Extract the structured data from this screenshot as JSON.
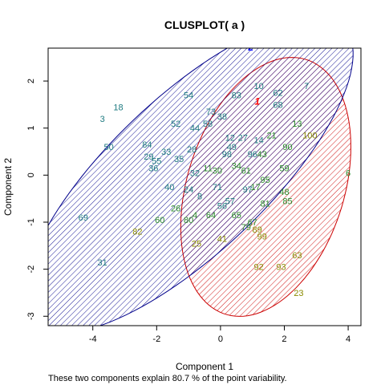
{
  "chart_data": {
    "type": "scatter",
    "title": "CLUSPLOT( a )",
    "xlabel": "Component 1",
    "ylabel": "Component 2",
    "note": "These two components explain 80.7 % of the point variability.",
    "xlim": [
      -5.4,
      4.4
    ],
    "ylim": [
      -3.2,
      2.7
    ],
    "xticks": [
      -4,
      -2,
      0,
      2,
      4
    ],
    "yticks": [
      -3,
      -2,
      -1,
      0,
      1,
      2
    ],
    "colors": {
      "cluster1": "#cc0000",
      "cluster2": "#00008b",
      "points_blue": "#1e7a80",
      "points_green": "#2a8a2a",
      "points_olive": "#8a8a00",
      "overlap": "#8a008a"
    },
    "clusters": [
      {
        "label": "1",
        "cx": 1.42,
        "cy": -0.25,
        "rx": 3.1,
        "ry": 2.25,
        "angle": 48,
        "label_x": 1.15,
        "label_y": 1.5,
        "label_color": "#ff0000"
      },
      {
        "label": "2",
        "cx": -1.0,
        "cy": 0.0,
        "rx": 5.85,
        "ry": 1.9,
        "angle": 30,
        "label_x": 0.95,
        "label_y": 2.65,
        "label_color": "#0000ff"
      }
    ],
    "points": [
      {
        "label": "3",
        "x": -3.7,
        "y": 1.2,
        "g": "blue"
      },
      {
        "label": "18",
        "x": -3.2,
        "y": 1.45,
        "g": "blue"
      },
      {
        "label": "50",
        "x": -3.5,
        "y": 0.6,
        "g": "blue"
      },
      {
        "label": "69",
        "x": -4.3,
        "y": -0.9,
        "g": "blue"
      },
      {
        "label": "31",
        "x": -3.7,
        "y": -1.85,
        "g": "blue"
      },
      {
        "label": "54",
        "x": -1.0,
        "y": 1.7,
        "g": "blue"
      },
      {
        "label": "73",
        "x": -0.3,
        "y": 1.35,
        "g": "blue"
      },
      {
        "label": "52",
        "x": -1.4,
        "y": 1.1,
        "g": "blue"
      },
      {
        "label": "83",
        "x": 0.5,
        "y": 1.7,
        "g": "blue"
      },
      {
        "label": "10",
        "x": 1.2,
        "y": 1.9,
        "g": "blue"
      },
      {
        "label": "62",
        "x": 1.8,
        "y": 1.75,
        "g": "blue"
      },
      {
        "label": "7",
        "x": 2.7,
        "y": 1.9,
        "g": "blue"
      },
      {
        "label": "68",
        "x": 1.8,
        "y": 1.5,
        "g": "blue"
      },
      {
        "label": "84",
        "x": -2.3,
        "y": 0.65,
        "g": "blue"
      },
      {
        "label": "29",
        "x": -2.25,
        "y": 0.4,
        "g": "blue"
      },
      {
        "label": "33",
        "x": -1.7,
        "y": 0.5,
        "g": "blue"
      },
      {
        "label": "55",
        "x": -2.0,
        "y": 0.3,
        "g": "blue"
      },
      {
        "label": "36",
        "x": -2.1,
        "y": 0.15,
        "g": "blue"
      },
      {
        "label": "35",
        "x": -1.3,
        "y": 0.35,
        "g": "blue"
      },
      {
        "label": "28",
        "x": -0.9,
        "y": 0.55,
        "g": "blue"
      },
      {
        "label": "44",
        "x": -0.8,
        "y": 1.0,
        "g": "blue"
      },
      {
        "label": "58",
        "x": -0.4,
        "y": 1.1,
        "g": "blue"
      },
      {
        "label": "38",
        "x": 0.05,
        "y": 1.25,
        "g": "blue"
      },
      {
        "label": "12",
        "x": 0.3,
        "y": 0.8,
        "g": "blue"
      },
      {
        "label": "49",
        "x": 0.35,
        "y": 0.6,
        "g": "blue"
      },
      {
        "label": "27",
        "x": 0.7,
        "y": 0.8,
        "g": "blue"
      },
      {
        "label": "14",
        "x": 1.2,
        "y": 0.75,
        "g": "blue"
      },
      {
        "label": "96",
        "x": 1.0,
        "y": 0.45,
        "g": "blue"
      },
      {
        "label": "98",
        "x": 0.2,
        "y": 0.45,
        "g": "blue"
      },
      {
        "label": "32",
        "x": -0.8,
        "y": 0.05,
        "g": "blue"
      },
      {
        "label": "40",
        "x": -1.6,
        "y": -0.25,
        "g": "blue"
      },
      {
        "label": "24",
        "x": -1.0,
        "y": -0.3,
        "g": "blue"
      },
      {
        "label": "8",
        "x": -0.65,
        "y": -0.45,
        "g": "blue"
      },
      {
        "label": "71",
        "x": -0.1,
        "y": -0.25,
        "g": "blue"
      },
      {
        "label": "97",
        "x": 0.85,
        "y": -0.3,
        "g": "blue"
      },
      {
        "label": "57",
        "x": 0.3,
        "y": -0.55,
        "g": "blue"
      },
      {
        "label": "56",
        "x": 0.05,
        "y": -0.65,
        "g": "blue"
      },
      {
        "label": "13",
        "x": 2.4,
        "y": 1.1,
        "g": "green"
      },
      {
        "label": "90",
        "x": 2.1,
        "y": 0.6,
        "g": "green"
      },
      {
        "label": "21",
        "x": 1.6,
        "y": 0.85,
        "g": "green"
      },
      {
        "label": "43",
        "x": 1.3,
        "y": 0.45,
        "g": "green"
      },
      {
        "label": "34",
        "x": 0.5,
        "y": 0.2,
        "g": "green"
      },
      {
        "label": "11",
        "x": -0.4,
        "y": 0.15,
        "g": "green"
      },
      {
        "label": "30",
        "x": -0.1,
        "y": 0.1,
        "g": "green"
      },
      {
        "label": "61",
        "x": 0.8,
        "y": 0.1,
        "g": "green"
      },
      {
        "label": "6",
        "x": 4.0,
        "y": 0.05,
        "g": "green"
      },
      {
        "label": "95",
        "x": 1.4,
        "y": -0.1,
        "g": "green"
      },
      {
        "label": "17",
        "x": 1.1,
        "y": -0.25,
        "g": "green"
      },
      {
        "label": "81",
        "x": 1.4,
        "y": -0.6,
        "g": "green"
      },
      {
        "label": "59",
        "x": 2.0,
        "y": 0.15,
        "g": "green"
      },
      {
        "label": "48",
        "x": 2.0,
        "y": -0.35,
        "g": "green"
      },
      {
        "label": "85",
        "x": 2.1,
        "y": -0.55,
        "g": "green"
      },
      {
        "label": "26",
        "x": -1.4,
        "y": -0.7,
        "g": "green"
      },
      {
        "label": "4",
        "x": -0.8,
        "y": -0.85,
        "g": "green"
      },
      {
        "label": "64",
        "x": -0.3,
        "y": -0.85,
        "g": "green"
      },
      {
        "label": "65",
        "x": 0.5,
        "y": -0.85,
        "g": "green"
      },
      {
        "label": "79",
        "x": 0.8,
        "y": -1.1,
        "g": "green"
      },
      {
        "label": "67",
        "x": 1.0,
        "y": -1.0,
        "g": "green"
      },
      {
        "label": "80",
        "x": -1.0,
        "y": -0.95,
        "g": "green"
      },
      {
        "label": "60",
        "x": -1.9,
        "y": -0.95,
        "g": "green"
      },
      {
        "label": "100",
        "x": 2.8,
        "y": 0.85,
        "g": "olive"
      },
      {
        "label": "25",
        "x": -0.75,
        "y": -1.45,
        "g": "olive"
      },
      {
        "label": "41",
        "x": 0.05,
        "y": -1.35,
        "g": "olive"
      },
      {
        "label": "82",
        "x": -2.6,
        "y": -1.2,
        "g": "olive"
      },
      {
        "label": "99",
        "x": 1.3,
        "y": -1.3,
        "g": "olive"
      },
      {
        "label": "93",
        "x": 1.9,
        "y": -1.95,
        "g": "olive"
      },
      {
        "label": "92",
        "x": 1.2,
        "y": -1.95,
        "g": "olive"
      },
      {
        "label": "63",
        "x": 2.4,
        "y": -1.7,
        "g": "olive"
      },
      {
        "label": "23",
        "x": 2.45,
        "y": -2.5,
        "g": "olive"
      },
      {
        "label": "89",
        "x": 1.15,
        "y": -1.15,
        "g": "olive"
      }
    ]
  }
}
